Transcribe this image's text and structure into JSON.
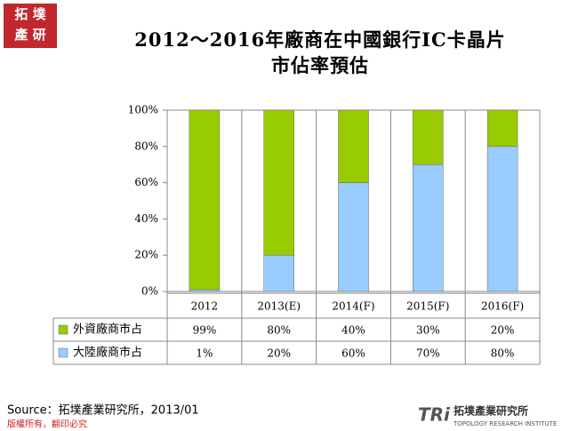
{
  "logo": {
    "line1": "拓 墣",
    "line2": "產 研"
  },
  "chart_data": {
    "type": "stacked_bar",
    "title": "2012～2016年廠商在中國銀行IC卡晶片市佔率預估",
    "categories": [
      "2012",
      "2013(E)",
      "2014(F)",
      "2015(F)",
      "2016(F)"
    ],
    "series": [
      {
        "name": "外資廠商市占",
        "color": "#99cc00",
        "values": [
          99,
          80,
          40,
          30,
          20
        ],
        "value_labels": [
          "99%",
          "80%",
          "40%",
          "30%",
          "20%"
        ]
      },
      {
        "name": "大陸廠商市占",
        "color": "#99ccff",
        "values": [
          1,
          20,
          60,
          70,
          80
        ],
        "value_labels": [
          "1%",
          "20%",
          "60%",
          "70%",
          "80%"
        ]
      }
    ],
    "ylim": [
      0,
      100
    ],
    "yticks": [
      {
        "value": 0,
        "label": "0%"
      },
      {
        "value": 20,
        "label": "20%"
      },
      {
        "value": 40,
        "label": "40%"
      },
      {
        "value": 60,
        "label": "60%"
      },
      {
        "value": 80,
        "label": "80%"
      },
      {
        "value": 100,
        "label": "100%"
      }
    ],
    "grid": false
  },
  "source": "Source：拓墣產業研究所，2013/01",
  "footer": "版權所有，翻印必究",
  "brand": {
    "mark": "TRi",
    "name": "拓墣產業研究所",
    "english": "TOPOLOGY RESEARCH INSTITUTE"
  }
}
